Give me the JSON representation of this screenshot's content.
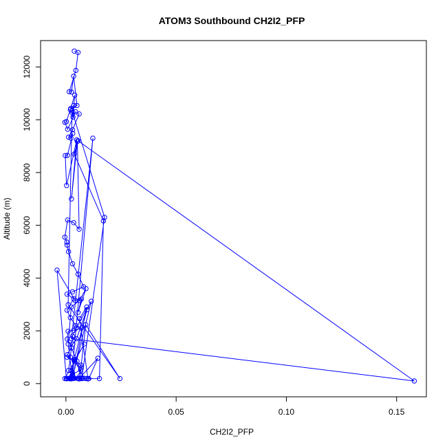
{
  "chart_data": {
    "type": "line",
    "title": "ATOM3 Southbound CH2I2_PFP",
    "xlabel": "CH2I2_PFP",
    "ylabel": "Altitude (m)",
    "xlim": [
      -0.0115,
      0.1635
    ],
    "ylim": [
      -500,
      13000
    ],
    "x_ticks": [
      0.0,
      0.05,
      0.1,
      0.15
    ],
    "x_tick_labels": [
      "0.00",
      "0.05",
      "0.10",
      "0.15"
    ],
    "y_ticks": [
      0,
      2000,
      4000,
      6000,
      8000,
      10000,
      12000
    ],
    "y_tick_labels": [
      "0",
      "2000",
      "4000",
      "6000",
      "8000",
      "10000",
      "12000"
    ],
    "grid": false,
    "legend": "none",
    "color": "#0000ff",
    "marker": "open-circle",
    "series": [
      {
        "x": [
          0.0038,
          0.0055,
          0.0045,
          0.0015,
          0.0025,
          0.0035,
          0.005,
          0.002,
          0.004,
          0.0032,
          0.0028,
          0.0036,
          0.0022,
          0.0002,
          -0.0005,
          0.0008,
          0.0044,
          0.006,
          0.003,
          0.0012,
          0.0023,
          0.0031,
          0.0007,
          -0.0003,
          0.0003,
          0.0049,
          0.0025,
          0.0052,
          0.006,
          0.0035,
          0.0008,
          -0.0005,
          0.0004,
          0.0005,
          0.0012,
          0.003,
          0.0055,
          0.008,
          0.003,
          0.0005,
          0.0035,
          0.0005,
          0.002,
          0.0045,
          0.007,
          0.0035,
          0.001,
          0.0006,
          0.0025,
          0.005,
          0.0065,
          0.0035,
          0.0018,
          0.0002,
          -0.004,
          0.0042,
          0.007,
          0.0055,
          0.0091,
          0.0062,
          0.0024,
          0.001,
          0.0029,
          0.0115,
          0.0046,
          0.003,
          0.002,
          0.0012,
          0.0028,
          0.0016,
          0.0095,
          0.0048,
          0.0031,
          0.0007,
          0.0005,
          0.0036,
          0.0068,
          0.007,
          0.006,
          0.0052,
          0.0083,
          0.0038,
          0.0038,
          0.0031,
          0.002,
          0.0032,
          0.0005,
          0.0026,
          0.0122,
          0.0025,
          0.158,
          0.0055,
          0.0038,
          0.017,
          0.0152,
          0.006,
          0.0075,
          0.0093,
          0.0022,
          0.0038,
          0.0026,
          0.0011,
          0.0031,
          0.0094,
          0.0062,
          0.01,
          0.0104,
          0.0145,
          0.0058,
          0.0065,
          0.0072,
          0.0175,
          0.0028,
          0.001,
          0.0245,
          0.009,
          0.0067,
          -0.0005,
          0.0083,
          0.004,
          0.003,
          0.0018
        ],
        "y": [
          12600,
          12550,
          11870,
          11060,
          11050,
          11650,
          10540,
          10380,
          10930,
          10100,
          10270,
          10540,
          10430,
          9930,
          9900,
          9640,
          10300,
          10220,
          9620,
          9340,
          9300,
          9480,
          8650,
          8640,
          7510,
          9240,
          7000,
          9180,
          5850,
          6100,
          6200,
          5550,
          5360,
          5250,
          5000,
          4540,
          4150,
          3670,
          3480,
          3390,
          3220,
          2780,
          2500,
          2200,
          2100,
          2020,
          1980,
          1690,
          1350,
          850,
          300,
          200,
          200,
          190,
          4300,
          3150,
          3200,
          2700,
          3600,
          3150,
          2900,
          1500,
          200,
          3120,
          2100,
          1800,
          1000,
          500,
          300,
          200,
          2800,
          1700,
          1500,
          1100,
          1000,
          900,
          700,
          600,
          180,
          200,
          200,
          900,
          850,
          300,
          180,
          200,
          185,
          200,
          9300,
          1700,
          100,
          9200,
          8700,
          6170,
          190,
          185,
          200,
          190,
          200,
          200,
          185,
          195,
          200,
          2900,
          2460,
          180,
          190,
          960,
          180,
          200,
          190,
          6300,
          10340,
          2990,
          190,
          2230,
          520,
          190,
          1500,
          900,
          400,
          200
        ]
      }
    ]
  }
}
